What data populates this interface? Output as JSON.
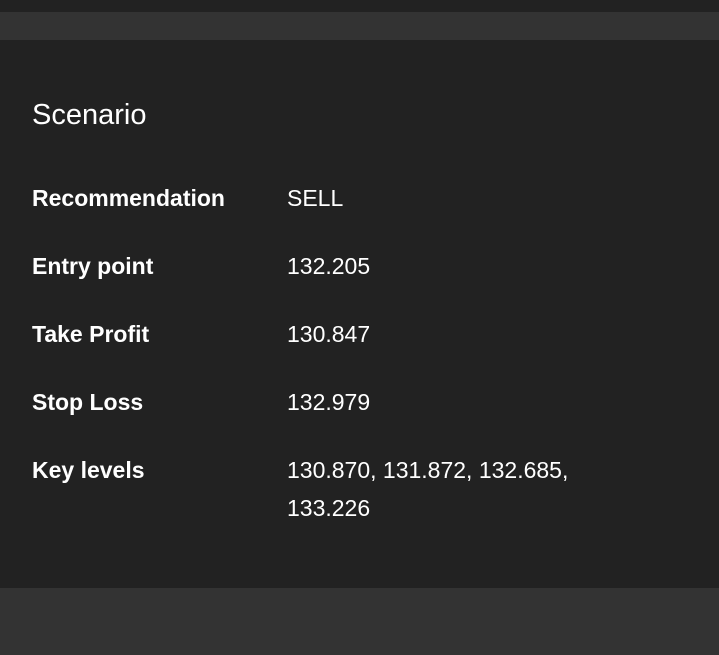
{
  "scenario": {
    "title": "Scenario",
    "rows": [
      {
        "label": "Recommendation",
        "value": "SELL"
      },
      {
        "label": "Entry point",
        "value": "132.205"
      },
      {
        "label": "Take Profit",
        "value": "130.847"
      },
      {
        "label": "Stop Loss",
        "value": "132.979"
      },
      {
        "label": "Key levels",
        "value": "130.870, 131.872, 132.685, 133.226"
      }
    ]
  },
  "colors": {
    "background": "#222222",
    "divider_strip": "#333333",
    "text": "#ffffff"
  }
}
